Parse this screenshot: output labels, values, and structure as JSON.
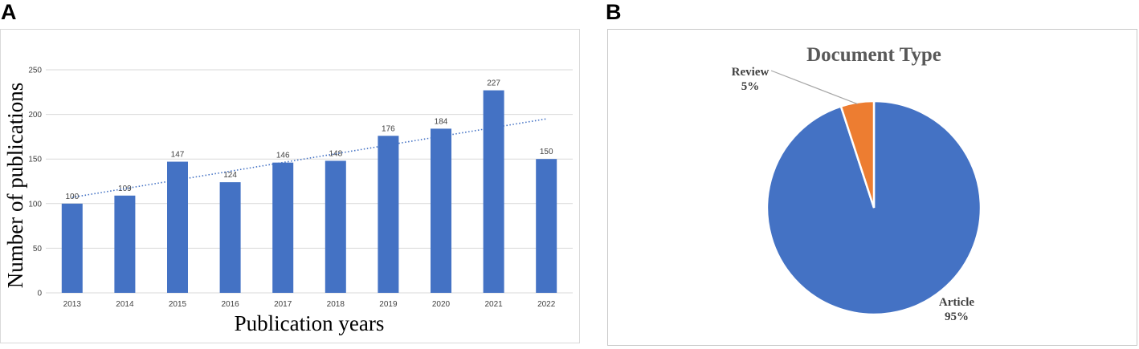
{
  "panel_labels": {
    "a": "A",
    "b": "B"
  },
  "colors": {
    "bar": "#4472c4",
    "trend": "#4472c4",
    "grid": "#d9d9d9",
    "article": "#4472c4",
    "review": "#ed7d31",
    "title": "#595959"
  },
  "chart_data": [
    {
      "type": "bar",
      "categories": [
        "2013",
        "2014",
        "2015",
        "2016",
        "2017",
        "2018",
        "2019",
        "2020",
        "2021",
        "2022"
      ],
      "values": [
        100,
        109,
        147,
        124,
        146,
        148,
        176,
        184,
        227,
        150
      ],
      "data_labels": [
        "100",
        "109",
        "147",
        "124",
        "146",
        "148",
        "176",
        "184",
        "227",
        "150"
      ],
      "title": "",
      "xlabel": "Publication years",
      "ylabel": "Number of publications",
      "ylim": [
        0,
        250
      ],
      "yticks": [
        "0",
        "50",
        "100",
        "150",
        "200",
        "250"
      ],
      "grid": true,
      "trendline": {
        "type": "linear",
        "style": "dotted",
        "start": 107,
        "end": 195
      }
    },
    {
      "type": "pie",
      "title": "Document Type",
      "slices": [
        {
          "label": "Article",
          "value": 95,
          "percent_label": "95%"
        },
        {
          "label": "Review",
          "value": 5,
          "percent_label": "5%"
        }
      ],
      "legend": "none"
    }
  ]
}
